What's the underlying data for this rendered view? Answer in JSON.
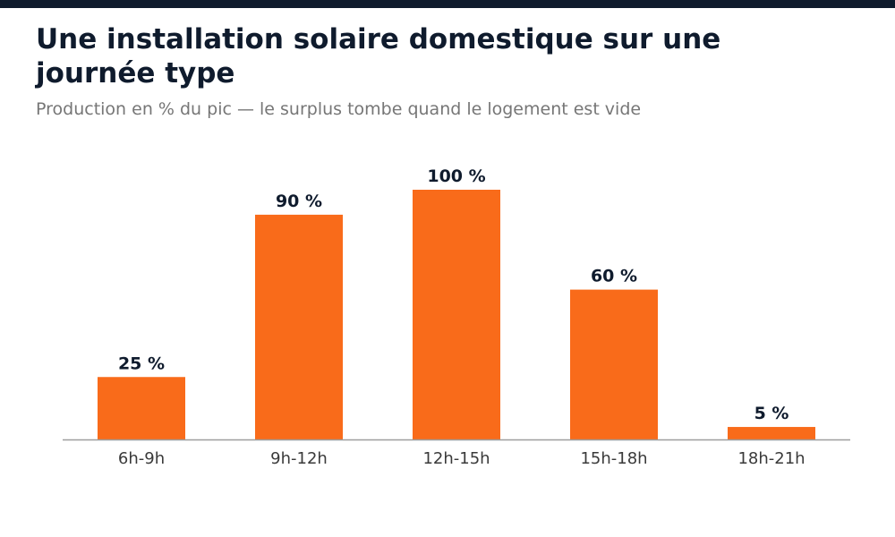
{
  "title": "Une installation solaire domestique sur une journée type",
  "subtitle": "Production en % du pic — le surplus tombe quand le logement est vide",
  "colors": {
    "bar": "#f96b1a",
    "value_label": "#0f1b2d",
    "tick_label": "#3a3a3a",
    "axis": "#9e9e9e",
    "title": "#0f1b2d",
    "subtitle": "#767676",
    "top_bar": "#0f1b2d"
  },
  "chart_data": {
    "type": "bar",
    "categories": [
      "6h-9h",
      "9h-12h",
      "12h-15h",
      "15h-18h",
      "18h-21h"
    ],
    "values": [
      25,
      90,
      100,
      60,
      5
    ],
    "value_labels": [
      "25 %",
      "90 %",
      "100 %",
      "60 %",
      "5 %"
    ],
    "ylim": [
      0,
      100
    ],
    "grid": false,
    "legend": "none"
  }
}
